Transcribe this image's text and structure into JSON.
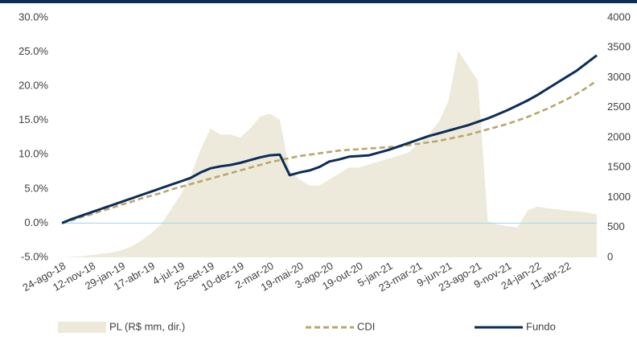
{
  "chart_data": {
    "type": "line",
    "categories": [
      "24-ago-18",
      null,
      null,
      "12-nov-18",
      null,
      null,
      "29-jan-19",
      null,
      null,
      "17-abr-19",
      null,
      null,
      "4-jul-19",
      null,
      null,
      "25-set-19",
      null,
      null,
      "10-dez-19",
      null,
      null,
      "2-mar-20",
      null,
      null,
      "19-mai-20",
      null,
      null,
      "3-ago-20",
      null,
      null,
      "19-out-20",
      null,
      null,
      "5-jan-21",
      null,
      null,
      "23-mar-21",
      null,
      null,
      "9-jun-21",
      null,
      null,
      "23-ago-21",
      null,
      null,
      "9-nov-21",
      null,
      null,
      "24-jan-22",
      null,
      null,
      "11-abr-22",
      null,
      null,
      null
    ],
    "ylim": [
      -5,
      30
    ],
    "yticks": [
      {
        "value": -5,
        "label": "-5.0%"
      },
      {
        "value": 0,
        "label": "0.0%"
      },
      {
        "value": 5,
        "label": "5.0%"
      },
      {
        "value": 10,
        "label": "10.0%"
      },
      {
        "value": 15,
        "label": "15.0%"
      },
      {
        "value": 20,
        "label": "20.0%"
      },
      {
        "value": 25,
        "label": "25.0%"
      },
      {
        "value": 30,
        "label": "30.0%"
      }
    ],
    "y2lim": [
      0,
      4000
    ],
    "y2ticks": [
      0,
      500,
      1000,
      1500,
      2000,
      2500,
      3000,
      3500,
      4000
    ],
    "zero_line_color": "#a8d8f0",
    "legend": "bottom",
    "series": [
      {
        "name": "PL (R$ mm, dir.)",
        "kind": "area",
        "axis": "y2",
        "color": "#eeeadb",
        "values": [
          0,
          10,
          20,
          40,
          60,
          80,
          120,
          180,
          280,
          400,
          550,
          800,
          1050,
          1350,
          1800,
          2150,
          2050,
          2050,
          2000,
          2150,
          2350,
          2400,
          2300,
          1450,
          1300,
          1200,
          1200,
          1300,
          1400,
          1500,
          1500,
          1550,
          1600,
          1650,
          1700,
          1750,
          1900,
          2050,
          2250,
          2600,
          3450,
          3200,
          2950,
          600,
          550,
          520,
          500,
          780,
          850,
          820,
          800,
          780,
          770,
          750,
          720
        ]
      },
      {
        "name": "CDI",
        "kind": "line",
        "dash": true,
        "color": "#b9a66e",
        "values": [
          0,
          0.4,
          0.9,
          1.3,
          1.8,
          2.2,
          2.7,
          3.1,
          3.6,
          4.0,
          4.4,
          4.9,
          5.3,
          5.7,
          6.1,
          6.5,
          6.9,
          7.3,
          7.7,
          8.1,
          8.5,
          8.9,
          9.2,
          9.5,
          9.8,
          10.0,
          10.2,
          10.4,
          10.6,
          10.7,
          10.8,
          10.9,
          11.0,
          11.1,
          11.2,
          11.4,
          11.6,
          11.8,
          12.0,
          12.3,
          12.6,
          12.9,
          13.3,
          13.7,
          14.1,
          14.5,
          15.0,
          15.5,
          16.1,
          16.7,
          17.4,
          18.1,
          18.9,
          19.8,
          20.8
        ]
      },
      {
        "name": "Fundo",
        "kind": "line",
        "color": "#0b2d57",
        "values": [
          0,
          0.6,
          1.1,
          1.6,
          2.1,
          2.6,
          3.1,
          3.6,
          4.1,
          4.6,
          5.1,
          5.6,
          6.1,
          6.6,
          7.4,
          8.0,
          8.3,
          8.5,
          8.8,
          9.2,
          9.6,
          9.9,
          10.0,
          7.0,
          7.4,
          7.7,
          8.2,
          9.0,
          9.3,
          9.7,
          9.8,
          9.9,
          10.3,
          10.7,
          11.2,
          11.7,
          12.2,
          12.7,
          13.1,
          13.5,
          13.9,
          14.3,
          14.8,
          15.3,
          15.9,
          16.5,
          17.2,
          17.9,
          18.7,
          19.6,
          20.5,
          21.4,
          22.3,
          23.4,
          24.5
        ]
      }
    ]
  }
}
